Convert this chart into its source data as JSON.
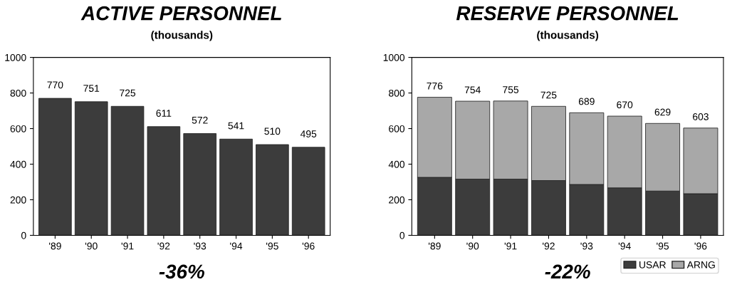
{
  "chart_data": [
    {
      "type": "bar",
      "title": "ACTIVE PERSONNEL",
      "subtitle": "(thousands)",
      "categories": [
        "'89",
        "'90",
        "'91",
        "'92",
        "'93",
        "'94",
        "'95",
        "'96"
      ],
      "values": [
        770,
        751,
        725,
        611,
        572,
        541,
        510,
        495
      ],
      "color": "#3c3c3c",
      "data_labels": true,
      "ylim": [
        0,
        1000
      ],
      "yticks": [
        0,
        200,
        400,
        600,
        800,
        1000
      ],
      "annotations": [
        "-36%"
      ]
    },
    {
      "type": "bar",
      "title": "RESERVE PERSONNEL",
      "subtitle": "(thousands)",
      "categories": [
        "'89",
        "'90",
        "'91",
        "'92",
        "'93",
        "'94",
        "'95",
        "'96"
      ],
      "stacked": true,
      "series": [
        {
          "name": "USAR",
          "color": "#3c3c3c",
          "values": [
            326,
            316,
            316,
            308,
            286,
            267,
            249,
            234
          ]
        },
        {
          "name": "ARNG",
          "color": "#a8a8a8",
          "values": [
            450,
            438,
            439,
            417,
            403,
            403,
            380,
            369
          ]
        }
      ],
      "totals": [
        "776",
        "754",
        "755",
        "725",
        "689",
        "670",
        "629",
        "603"
      ],
      "legend": "bottom right",
      "ylim": [
        0,
        1000
      ],
      "yticks": [
        0,
        200,
        400,
        600,
        800,
        1000
      ],
      "annotations": [
        "-22%"
      ]
    }
  ]
}
